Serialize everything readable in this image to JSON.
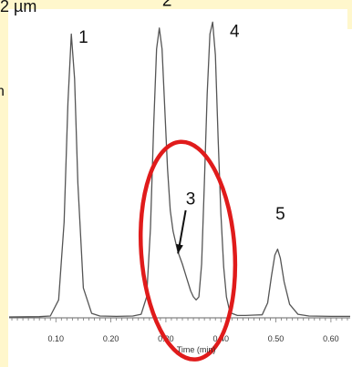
{
  "header": {
    "corner_text": "2 µm",
    "side_letter": "n"
  },
  "chart_data": {
    "type": "line",
    "xlabel": "Time (min)",
    "xlim": [
      0.015,
      0.635
    ],
    "ylim": [
      0,
      1.0
    ],
    "xticks": [
      "0.10",
      "0.20",
      "0.30",
      "0.40",
      "0.50",
      "0.60"
    ],
    "xtick_values": [
      0.1,
      0.2,
      0.3,
      0.4,
      0.5,
      0.6
    ],
    "grid": false,
    "series": [
      {
        "color": "#555555",
        "x": [
          0.015,
          0.07,
          0.09,
          0.105,
          0.115,
          0.122,
          0.128,
          0.134,
          0.14,
          0.15,
          0.165,
          0.18,
          0.21,
          0.24,
          0.255,
          0.265,
          0.272,
          0.278,
          0.283,
          0.288,
          0.293,
          0.298,
          0.303,
          0.308,
          0.313,
          0.318,
          0.322,
          0.326,
          0.33,
          0.335,
          0.34,
          0.345,
          0.35,
          0.355,
          0.36,
          0.365,
          0.37,
          0.375,
          0.38,
          0.385,
          0.39,
          0.395,
          0.4,
          0.405,
          0.41,
          0.415,
          0.42,
          0.43,
          0.445,
          0.46,
          0.475,
          0.485,
          0.492,
          0.498,
          0.503,
          0.508,
          0.515,
          0.525,
          0.54,
          0.56,
          0.6,
          0.635
        ],
        "y": [
          0.003,
          0.004,
          0.006,
          0.06,
          0.32,
          0.72,
          0.95,
          0.8,
          0.45,
          0.1,
          0.015,
          0.006,
          0.005,
          0.006,
          0.012,
          0.07,
          0.3,
          0.65,
          0.9,
          0.97,
          0.9,
          0.7,
          0.5,
          0.36,
          0.29,
          0.25,
          0.22,
          0.2,
          0.18,
          0.15,
          0.12,
          0.09,
          0.07,
          0.06,
          0.07,
          0.18,
          0.45,
          0.75,
          0.95,
          0.99,
          0.88,
          0.6,
          0.35,
          0.17,
          0.07,
          0.03,
          0.015,
          0.008,
          0.008,
          0.009,
          0.01,
          0.05,
          0.14,
          0.21,
          0.23,
          0.2,
          0.12,
          0.045,
          0.012,
          0.006,
          0.005,
          0.005
        ]
      }
    ],
    "peak_labels": [
      {
        "text": "1",
        "x": 0.15,
        "y": 0.92
      },
      {
        "text": "2",
        "x": 0.302,
        "y": 1.045
      },
      {
        "text": "3",
        "x": 0.345,
        "y": 0.38
      },
      {
        "text": "4",
        "x": 0.425,
        "y": 0.94
      },
      {
        "text": "5",
        "x": 0.508,
        "y": 0.33
      }
    ],
    "annotations": {
      "arrow_color": "#111111",
      "ellipse_color": "#e01b1b"
    }
  }
}
